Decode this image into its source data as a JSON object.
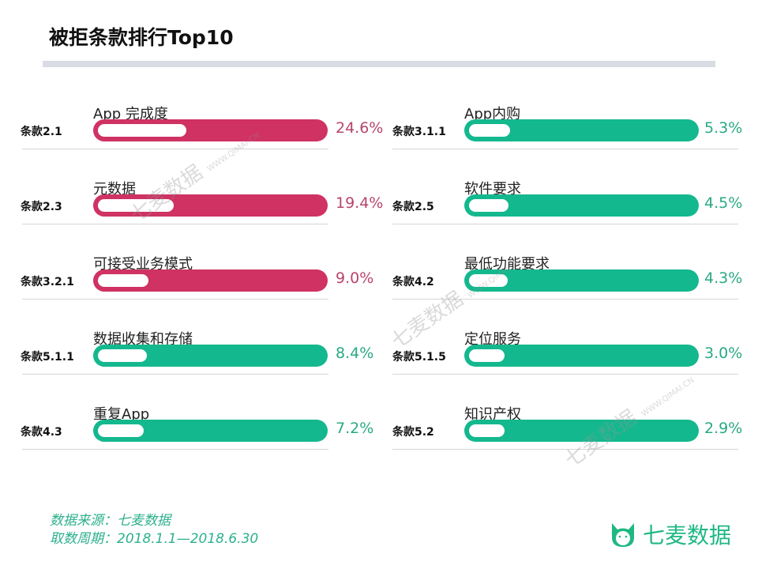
{
  "chart_data": {
    "type": "bar",
    "title": "被拒条款排行Top10",
    "unit": "%",
    "colors": {
      "high": "#cf3263",
      "low": "#14b88e",
      "high_text": "#b8446e",
      "low_text": "#2aa985"
    },
    "items": [
      {
        "clause": "条款2.1",
        "name": "App 完成度",
        "value": 24.6,
        "label": "24.6%",
        "color": "high"
      },
      {
        "clause": "条款2.3",
        "name": "元数据",
        "value": 19.4,
        "label": "19.4%",
        "color": "high"
      },
      {
        "clause": "条款3.2.1",
        "name": "可接受业务模式",
        "value": 9.0,
        "label": "9.0%",
        "color": "high"
      },
      {
        "clause": "条款5.1.1",
        "name": "数据收集和存储",
        "value": 8.4,
        "label": "8.4%",
        "color": "low"
      },
      {
        "clause": "条款4.3",
        "name": "重复App",
        "value": 7.2,
        "label": "7.2%",
        "color": "low"
      },
      {
        "clause": "条款3.1.1",
        "name": "App内购",
        "value": 5.3,
        "label": "5.3%",
        "color": "low"
      },
      {
        "clause": "条款2.5",
        "name": "软件要求",
        "value": 4.5,
        "label": "4.5%",
        "color": "low"
      },
      {
        "clause": "条款4.2",
        "name": "最低功能要求",
        "value": 4.3,
        "label": "4.3%",
        "color": "low"
      },
      {
        "clause": "条款5.1.5",
        "name": "定位服务",
        "value": 3.0,
        "label": "3.0%",
        "color": "low"
      },
      {
        "clause": "条款5.2",
        "name": "知识产权",
        "value": 2.9,
        "label": "2.9%",
        "color": "low"
      }
    ]
  },
  "footer": {
    "source": "数据来源：七麦数据",
    "period": "取数周期：2018.1.1—2018.6.30"
  },
  "logo": {
    "text": "七麦数据",
    "icon": "cat-icon"
  },
  "watermark": {
    "text": "七麦数据",
    "url": "WWW.QIMAI.CN"
  }
}
